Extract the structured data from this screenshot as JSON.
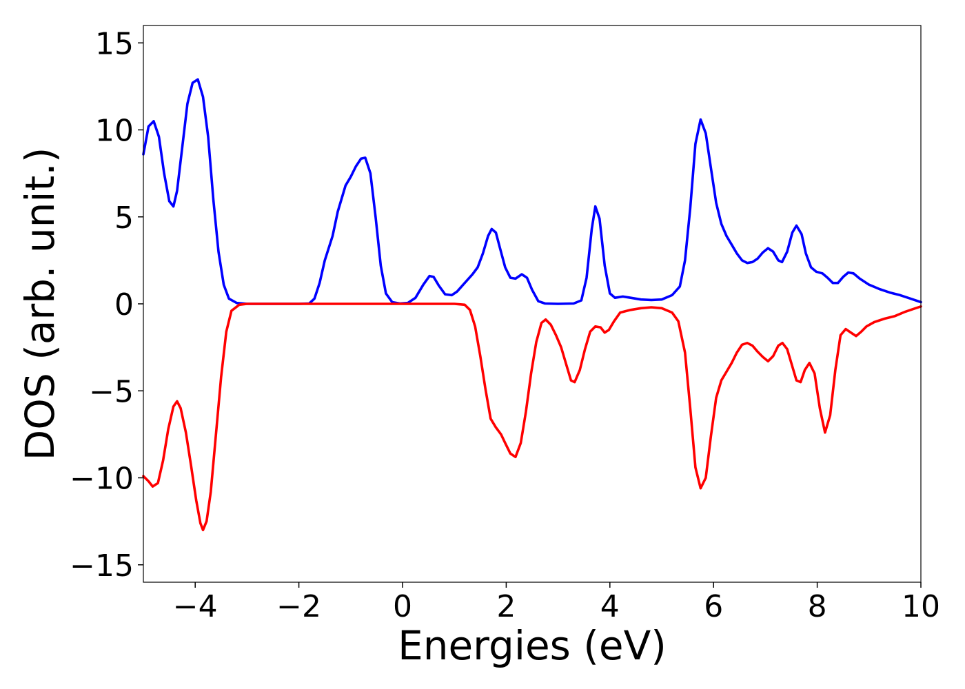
{
  "chart_data": {
    "type": "line",
    "title": "",
    "xlabel": "Energies (eV)",
    "ylabel": "DOS (arb. unit.)",
    "xlim": [
      -5,
      10
    ],
    "ylim": [
      -16,
      16
    ],
    "xticks": [
      -4,
      -2,
      0,
      2,
      4,
      6,
      8,
      10
    ],
    "xtick_labels": [
      "−4",
      "−2",
      "0",
      "2",
      "4",
      "6",
      "8",
      "10"
    ],
    "yticks": [
      -15,
      -10,
      -5,
      0,
      5,
      10,
      15
    ],
    "ytick_labels": [
      "−15",
      "−10",
      "−5",
      "0",
      "5",
      "10",
      "15"
    ],
    "grid": false,
    "series": [
      {
        "color": "#0000ff",
        "points": [
          [
            -5.0,
            8.6
          ],
          [
            -4.9,
            10.2
          ],
          [
            -4.8,
            10.5
          ],
          [
            -4.7,
            9.6
          ],
          [
            -4.6,
            7.5
          ],
          [
            -4.5,
            5.9
          ],
          [
            -4.42,
            5.6
          ],
          [
            -4.35,
            6.5
          ],
          [
            -4.25,
            9.0
          ],
          [
            -4.15,
            11.5
          ],
          [
            -4.05,
            12.7
          ],
          [
            -3.95,
            12.9
          ],
          [
            -3.85,
            11.9
          ],
          [
            -3.75,
            9.6
          ],
          [
            -3.65,
            6.0
          ],
          [
            -3.55,
            3.0
          ],
          [
            -3.45,
            1.1
          ],
          [
            -3.35,
            0.3
          ],
          [
            -3.2,
            0.05
          ],
          [
            -3.0,
            0.0
          ],
          [
            -2.0,
            0.0
          ],
          [
            -1.8,
            0.02
          ],
          [
            -1.7,
            0.3
          ],
          [
            -1.6,
            1.2
          ],
          [
            -1.5,
            2.5
          ],
          [
            -1.35,
            3.9
          ],
          [
            -1.25,
            5.3
          ],
          [
            -1.1,
            6.8
          ],
          [
            -1.0,
            7.3
          ],
          [
            -0.9,
            7.9
          ],
          [
            -0.8,
            8.35
          ],
          [
            -0.72,
            8.4
          ],
          [
            -0.62,
            7.5
          ],
          [
            -0.52,
            5.0
          ],
          [
            -0.42,
            2.2
          ],
          [
            -0.32,
            0.6
          ],
          [
            -0.2,
            0.1
          ],
          [
            -0.05,
            0.02
          ],
          [
            0.1,
            0.05
          ],
          [
            0.25,
            0.35
          ],
          [
            0.4,
            1.1
          ],
          [
            0.52,
            1.6
          ],
          [
            0.6,
            1.55
          ],
          [
            0.7,
            1.05
          ],
          [
            0.82,
            0.55
          ],
          [
            0.95,
            0.5
          ],
          [
            1.05,
            0.7
          ],
          [
            1.2,
            1.2
          ],
          [
            1.35,
            1.7
          ],
          [
            1.45,
            2.1
          ],
          [
            1.55,
            2.9
          ],
          [
            1.65,
            3.9
          ],
          [
            1.72,
            4.3
          ],
          [
            1.8,
            4.1
          ],
          [
            1.88,
            3.2
          ],
          [
            1.98,
            2.1
          ],
          [
            2.08,
            1.5
          ],
          [
            2.18,
            1.45
          ],
          [
            2.3,
            1.7
          ],
          [
            2.4,
            1.5
          ],
          [
            2.5,
            0.8
          ],
          [
            2.62,
            0.15
          ],
          [
            2.75,
            0.02
          ],
          [
            3.0,
            0.0
          ],
          [
            3.3,
            0.02
          ],
          [
            3.45,
            0.2
          ],
          [
            3.55,
            1.5
          ],
          [
            3.65,
            4.3
          ],
          [
            3.72,
            5.6
          ],
          [
            3.8,
            4.9
          ],
          [
            3.9,
            2.2
          ],
          [
            4.0,
            0.6
          ],
          [
            4.1,
            0.35
          ],
          [
            4.25,
            0.42
          ],
          [
            4.4,
            0.35
          ],
          [
            4.6,
            0.25
          ],
          [
            4.8,
            0.22
          ],
          [
            5.0,
            0.25
          ],
          [
            5.2,
            0.5
          ],
          [
            5.35,
            1.0
          ],
          [
            5.45,
            2.5
          ],
          [
            5.55,
            5.5
          ],
          [
            5.65,
            9.2
          ],
          [
            5.75,
            10.6
          ],
          [
            5.85,
            9.8
          ],
          [
            5.95,
            7.8
          ],
          [
            6.05,
            5.8
          ],
          [
            6.15,
            4.6
          ],
          [
            6.25,
            3.9
          ],
          [
            6.35,
            3.4
          ],
          [
            6.45,
            2.9
          ],
          [
            6.55,
            2.5
          ],
          [
            6.65,
            2.35
          ],
          [
            6.75,
            2.4
          ],
          [
            6.85,
            2.6
          ],
          [
            6.95,
            2.95
          ],
          [
            7.05,
            3.2
          ],
          [
            7.15,
            3.0
          ],
          [
            7.25,
            2.5
          ],
          [
            7.32,
            2.4
          ],
          [
            7.42,
            3.0
          ],
          [
            7.52,
            4.1
          ],
          [
            7.6,
            4.5
          ],
          [
            7.7,
            4.0
          ],
          [
            7.78,
            2.9
          ],
          [
            7.88,
            2.1
          ],
          [
            7.98,
            1.85
          ],
          [
            8.1,
            1.75
          ],
          [
            8.2,
            1.5
          ],
          [
            8.3,
            1.2
          ],
          [
            8.4,
            1.2
          ],
          [
            8.5,
            1.55
          ],
          [
            8.6,
            1.8
          ],
          [
            8.7,
            1.75
          ],
          [
            8.82,
            1.45
          ],
          [
            9.0,
            1.1
          ],
          [
            9.2,
            0.85
          ],
          [
            9.4,
            0.65
          ],
          [
            9.6,
            0.5
          ],
          [
            9.8,
            0.3
          ],
          [
            10.0,
            0.1
          ]
        ]
      },
      {
        "color": "#ff0000",
        "points": [
          [
            -5.0,
            -9.9
          ],
          [
            -4.9,
            -10.2
          ],
          [
            -4.82,
            -10.5
          ],
          [
            -4.72,
            -10.3
          ],
          [
            -4.62,
            -9.0
          ],
          [
            -4.52,
            -7.2
          ],
          [
            -4.42,
            -5.9
          ],
          [
            -4.35,
            -5.6
          ],
          [
            -4.28,
            -6.0
          ],
          [
            -4.18,
            -7.4
          ],
          [
            -4.08,
            -9.3
          ],
          [
            -3.98,
            -11.3
          ],
          [
            -3.9,
            -12.6
          ],
          [
            -3.85,
            -13.0
          ],
          [
            -3.78,
            -12.5
          ],
          [
            -3.7,
            -10.8
          ],
          [
            -3.6,
            -7.5
          ],
          [
            -3.5,
            -4.2
          ],
          [
            -3.4,
            -1.6
          ],
          [
            -3.3,
            -0.4
          ],
          [
            -3.15,
            -0.05
          ],
          [
            -3.0,
            0.0
          ],
          [
            1.0,
            0.0
          ],
          [
            1.2,
            -0.05
          ],
          [
            1.3,
            -0.35
          ],
          [
            1.4,
            -1.3
          ],
          [
            1.5,
            -3.0
          ],
          [
            1.6,
            -4.9
          ],
          [
            1.7,
            -6.6
          ],
          [
            1.8,
            -7.1
          ],
          [
            1.9,
            -7.5
          ],
          [
            1.98,
            -8.0
          ],
          [
            2.08,
            -8.6
          ],
          [
            2.18,
            -8.8
          ],
          [
            2.28,
            -8.0
          ],
          [
            2.38,
            -6.2
          ],
          [
            2.48,
            -4.0
          ],
          [
            2.58,
            -2.2
          ],
          [
            2.68,
            -1.1
          ],
          [
            2.76,
            -0.9
          ],
          [
            2.86,
            -1.2
          ],
          [
            2.96,
            -1.8
          ],
          [
            3.06,
            -2.5
          ],
          [
            3.16,
            -3.5
          ],
          [
            3.25,
            -4.4
          ],
          [
            3.32,
            -4.5
          ],
          [
            3.42,
            -3.8
          ],
          [
            3.52,
            -2.6
          ],
          [
            3.62,
            -1.6
          ],
          [
            3.72,
            -1.3
          ],
          [
            3.82,
            -1.35
          ],
          [
            3.9,
            -1.65
          ],
          [
            3.98,
            -1.5
          ],
          [
            4.08,
            -1.0
          ],
          [
            4.2,
            -0.5
          ],
          [
            4.4,
            -0.35
          ],
          [
            4.6,
            -0.25
          ],
          [
            4.8,
            -0.2
          ],
          [
            5.0,
            -0.25
          ],
          [
            5.2,
            -0.5
          ],
          [
            5.32,
            -1.0
          ],
          [
            5.45,
            -2.8
          ],
          [
            5.55,
            -6.0
          ],
          [
            5.65,
            -9.4
          ],
          [
            5.75,
            -10.6
          ],
          [
            5.85,
            -10.0
          ],
          [
            5.95,
            -7.6
          ],
          [
            6.05,
            -5.4
          ],
          [
            6.15,
            -4.4
          ],
          [
            6.25,
            -3.9
          ],
          [
            6.35,
            -3.4
          ],
          [
            6.45,
            -2.8
          ],
          [
            6.55,
            -2.35
          ],
          [
            6.65,
            -2.25
          ],
          [
            6.75,
            -2.4
          ],
          [
            6.85,
            -2.75
          ],
          [
            6.95,
            -3.05
          ],
          [
            7.05,
            -3.3
          ],
          [
            7.15,
            -3.0
          ],
          [
            7.25,
            -2.4
          ],
          [
            7.33,
            -2.25
          ],
          [
            7.42,
            -2.6
          ],
          [
            7.52,
            -3.6
          ],
          [
            7.6,
            -4.4
          ],
          [
            7.68,
            -4.5
          ],
          [
            7.76,
            -3.8
          ],
          [
            7.85,
            -3.4
          ],
          [
            7.95,
            -4.0
          ],
          [
            8.05,
            -6.0
          ],
          [
            8.15,
            -7.4
          ],
          [
            8.25,
            -6.4
          ],
          [
            8.35,
            -3.8
          ],
          [
            8.45,
            -1.8
          ],
          [
            8.55,
            -1.45
          ],
          [
            8.65,
            -1.65
          ],
          [
            8.75,
            -1.85
          ],
          [
            8.85,
            -1.6
          ],
          [
            8.95,
            -1.3
          ],
          [
            9.1,
            -1.05
          ],
          [
            9.3,
            -0.85
          ],
          [
            9.5,
            -0.7
          ],
          [
            9.7,
            -0.45
          ],
          [
            9.85,
            -0.3
          ],
          [
            10.0,
            -0.15
          ]
        ]
      }
    ]
  }
}
